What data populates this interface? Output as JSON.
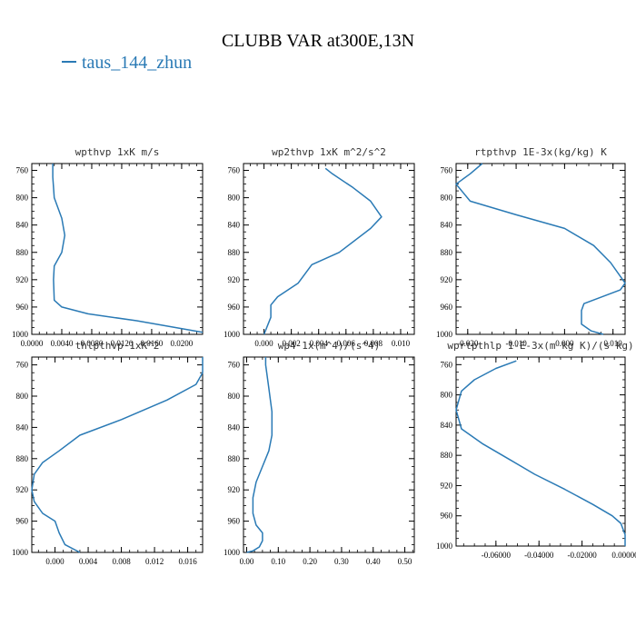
{
  "title": "CLUBB VAR at300E,13N",
  "legend": {
    "label": "taus_144_zhun",
    "color": "#2a7ab5"
  },
  "line_color": "#2a7ab5",
  "chart_data": [
    {
      "type": "line",
      "title": "wpthvp  1xK m/s",
      "xlim": [
        0.0,
        0.0228
      ],
      "ylim": [
        1000,
        750
      ],
      "xticks": [
        0.0,
        0.004,
        0.008,
        0.012,
        0.016,
        0.02
      ],
      "xtick_labels": [
        "0.0000",
        "0.0040",
        "0.0080",
        "0.0120",
        "0.0160",
        "0.0200"
      ],
      "yticks": [
        760,
        800,
        840,
        880,
        920,
        960,
        1000
      ],
      "series": [
        {
          "x": [
            0.0028,
            0.0028,
            0.003,
            0.004,
            0.0044,
            0.004,
            0.003,
            0.0029,
            0.003,
            0.004,
            0.0075,
            0.014,
            0.0228
          ],
          "y": [
            750,
            770,
            800,
            830,
            855,
            880,
            900,
            920,
            950,
            960,
            970,
            980,
            997
          ]
        }
      ]
    },
    {
      "type": "line",
      "title": "wp2thvp  1xK m^2/s^2",
      "xlim": [
        -0.0015,
        0.011
      ],
      "ylim": [
        1000,
        750
      ],
      "xticks": [
        0.0,
        0.002,
        0.004,
        0.006,
        0.008,
        0.01
      ],
      "xtick_labels": [
        "0.000",
        "0.002",
        "0.004",
        "0.006",
        "0.008",
        "0.010"
      ],
      "yticks": [
        760,
        800,
        840,
        880,
        920,
        960,
        1000
      ],
      "series": [
        {
          "x": [
            0.0045,
            0.005,
            0.0065,
            0.0078,
            0.0086,
            0.0078,
            0.0055,
            0.0035,
            0.0025,
            0.001,
            0.0005,
            0.0005,
            0.0005,
            0.0003,
            0.0
          ],
          "y": [
            757,
            765,
            785,
            805,
            828,
            845,
            880,
            898,
            925,
            945,
            957,
            965,
            975,
            985,
            1000
          ]
        }
      ]
    },
    {
      "type": "line",
      "title": "rtpthvp  1E-3x(kg/kg) K",
      "xlim": [
        -0.0224,
        0.0125
      ],
      "ylim": [
        1000,
        750
      ],
      "xticks": [
        -0.02,
        -0.01,
        0.0,
        0.01
      ],
      "xtick_labels": [
        "-0.020",
        "-0.010",
        "0.000",
        "0.010"
      ],
      "yticks": [
        760,
        800,
        840,
        880,
        920,
        960,
        1000
      ],
      "series": [
        {
          "x": [
            -0.017,
            -0.0195,
            -0.0224,
            -0.0195,
            -0.01,
            0.0,
            0.006,
            0.0095,
            0.0115,
            0.0125,
            0.0115,
            0.004,
            0.0035,
            0.0035,
            0.0055,
            0.008
          ],
          "y": [
            750,
            765,
            780,
            805,
            825,
            845,
            870,
            895,
            915,
            925,
            935,
            955,
            965,
            985,
            995,
            1000
          ]
        }
      ]
    },
    {
      "type": "line",
      "title": "thlpthvp  1xK^2",
      "xlim": [
        -0.0028,
        0.0178
      ],
      "ylim": [
        1000,
        750
      ],
      "xticks": [
        0.0,
        0.004,
        0.008,
        0.012,
        0.016
      ],
      "xtick_labels": [
        "0.000",
        "0.004",
        "0.008",
        "0.012",
        "0.016"
      ],
      "yticks": [
        760,
        800,
        840,
        880,
        920,
        960,
        1000
      ],
      "series": [
        {
          "x": [
            0.0178,
            0.0178,
            0.017,
            0.0135,
            0.008,
            0.003,
            0.0005,
            -0.0015,
            -0.0025,
            -0.0028,
            -0.0025,
            -0.0015,
            0.0,
            0.0005,
            0.0012,
            0.003
          ],
          "y": [
            750,
            770,
            785,
            805,
            830,
            850,
            870,
            885,
            900,
            920,
            935,
            950,
            960,
            975,
            990,
            1000
          ]
        }
      ]
    },
    {
      "type": "line",
      "title": "wp4  1x(m^4)/(s^4)",
      "xlim": [
        -0.01,
        0.53
      ],
      "ylim": [
        1000,
        750
      ],
      "xticks": [
        0.0,
        0.1,
        0.2,
        0.3,
        0.4,
        0.5
      ],
      "xtick_labels": [
        "0.00",
        "0.10",
        "0.20",
        "0.30",
        "0.40",
        "0.50"
      ],
      "yticks": [
        760,
        800,
        840,
        880,
        920,
        960,
        1000
      ],
      "series": [
        {
          "x": [
            0.06,
            0.06,
            0.07,
            0.08,
            0.08,
            0.07,
            0.05,
            0.03,
            0.02,
            0.02,
            0.03,
            0.05,
            0.05,
            0.04,
            0.02,
            0.0
          ],
          "y": [
            750,
            760,
            790,
            820,
            850,
            870,
            890,
            910,
            930,
            950,
            965,
            975,
            985,
            993,
            998,
            1000
          ]
        }
      ]
    },
    {
      "type": "line",
      "title": "wprtpthlp  1-E-3x(m kg K)/(s kg)",
      "xlim": [
        -0.0785,
        0.0
      ],
      "ylim": [
        1000,
        750
      ],
      "xticks": [
        -0.06,
        -0.04,
        -0.02,
        0.0
      ],
      "xtick_labels": [
        "-0.06000",
        "-0.04000",
        "-0.02000",
        "0.00000"
      ],
      "yticks": [
        760,
        800,
        840,
        880,
        920,
        960,
        1000
      ],
      "series": [
        {
          "x": [
            -0.0505,
            -0.06,
            -0.07,
            -0.076,
            -0.0785,
            -0.076,
            -0.066,
            -0.054,
            -0.042,
            -0.028,
            -0.015,
            -0.006,
            -0.002,
            0.0,
            0.0
          ],
          "y": [
            755,
            765,
            780,
            795,
            820,
            845,
            865,
            885,
            905,
            925,
            945,
            960,
            970,
            985,
            1000
          ]
        }
      ]
    }
  ]
}
